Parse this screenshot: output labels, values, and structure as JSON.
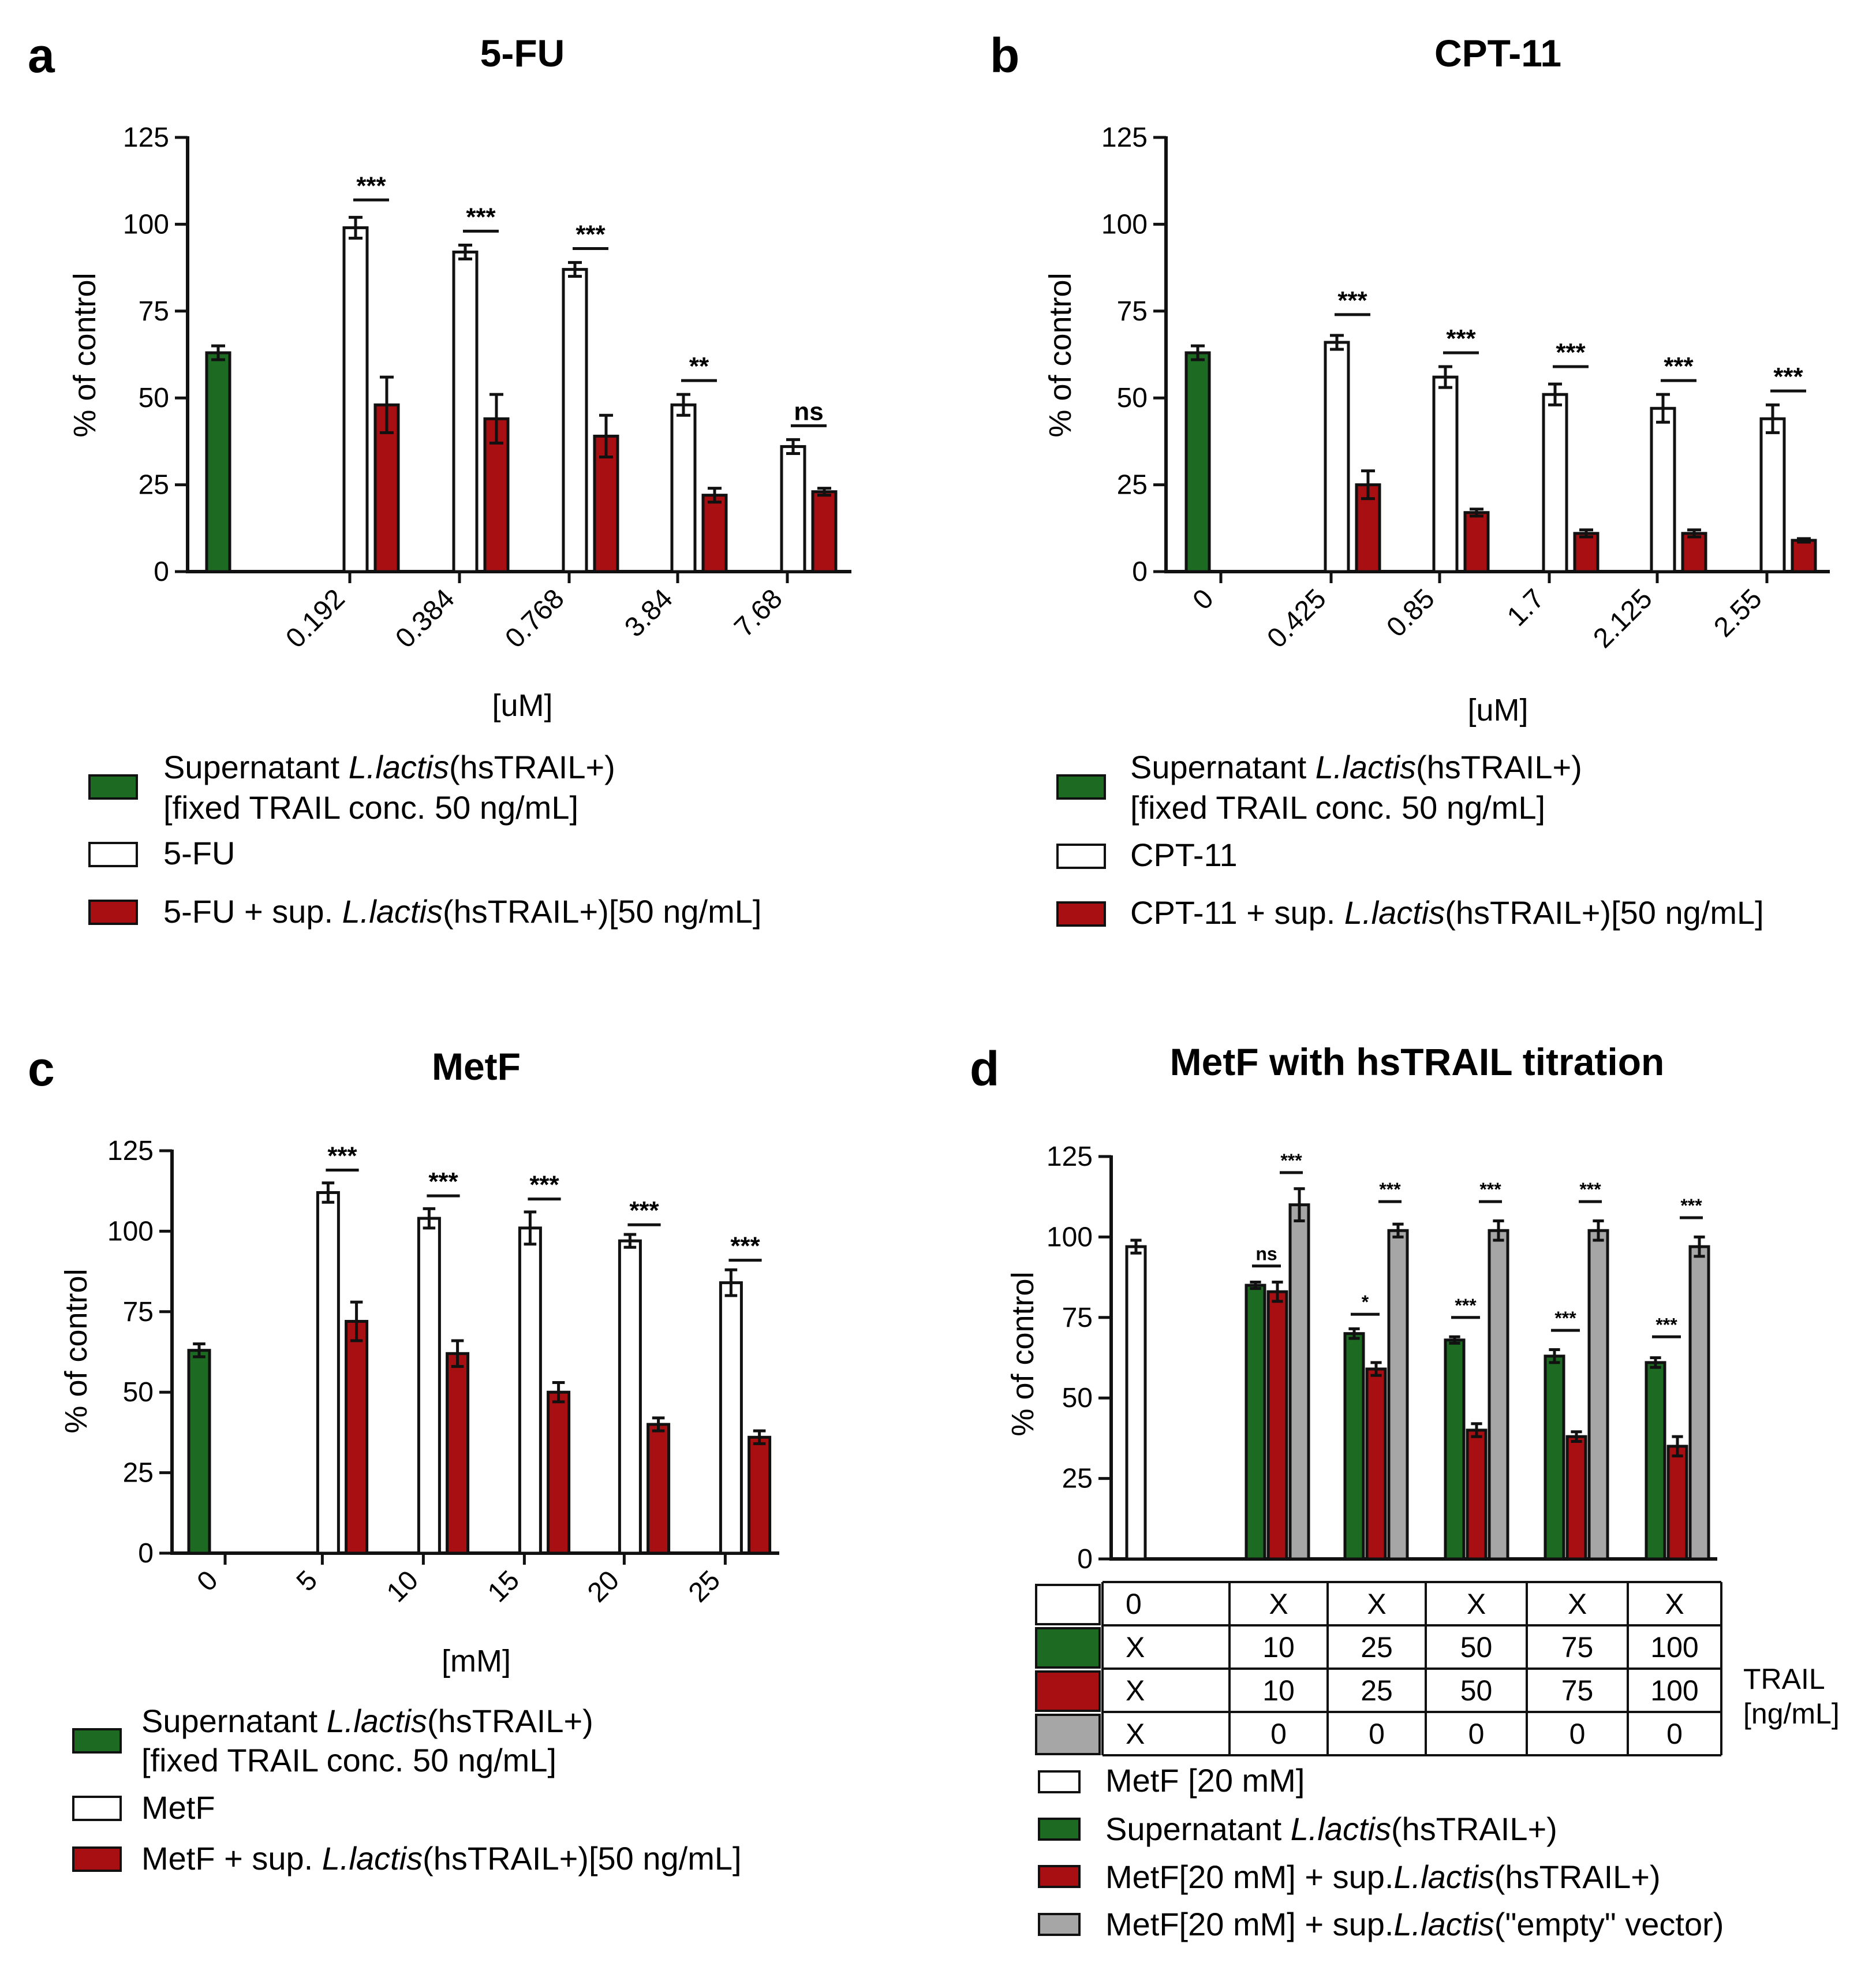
{
  "colors": {
    "green": "#1d6a22",
    "red": "#a80f12",
    "grey": "#a6a6a6",
    "white": "#ffffff",
    "axis": "#111111"
  },
  "axis_common": {
    "ylabel": "% of control",
    "yticks": [
      "0",
      "25",
      "50",
      "75",
      "100",
      "125"
    ],
    "ylim": [
      0,
      125
    ]
  },
  "panels": {
    "a": {
      "letter": "a",
      "title": "5-FU",
      "xunit": "[uM]"
    },
    "b": {
      "letter": "b",
      "title": "CPT-11",
      "xunit": "[uM]"
    },
    "c": {
      "letter": "c",
      "title": "MetF",
      "xunit": "[mM]"
    },
    "d": {
      "letter": "d",
      "title": "MetF with hsTRAIL titration"
    }
  },
  "legends": {
    "a": {
      "sup_line1_pre": "Supernatant ",
      "sup_italic": "L.lactis",
      "sup_line1_post": "(hsTRAIL+)",
      "sup_line2": "[fixed TRAIL conc. 50 ng/mL]",
      "drug": "5-FU",
      "combo_pre": "5-FU + sup. ",
      "combo_italic": "L.lactis",
      "combo_post": "(hsTRAIL+)[50 ng/mL]"
    },
    "b": {
      "sup_line1_pre": "Supernatant ",
      "sup_italic": "L.lactis",
      "sup_line1_post": "(hsTRAIL+)",
      "sup_line2": "[fixed TRAIL conc. 50 ng/mL]",
      "drug": "CPT-11",
      "combo_pre": "CPT-11 + sup. ",
      "combo_italic": "L.lactis",
      "combo_post": "(hsTRAIL+)[50 ng/mL]"
    },
    "c": {
      "sup_line1_pre": "Supernatant ",
      "sup_italic": "L.lactis",
      "sup_line1_post": "(hsTRAIL+)",
      "sup_line2": "[fixed TRAIL conc. 50 ng/mL]",
      "drug": "MetF",
      "combo_pre": "MetF + sup. ",
      "combo_italic": "L.lactis",
      "combo_post": "(hsTRAIL+)[50 ng/mL]"
    },
    "d": {
      "metf": "MetF [20 mM]",
      "sup_pre": "Supernatant ",
      "sup_italic": "L.lactis",
      "sup_post": "(hsTRAIL+)",
      "combo_pre": "MetF[20 mM] + sup.",
      "combo_italic": "L.lactis",
      "combo_post": "(hsTRAIL+)",
      "empty_pre": "MetF[20 mM] + sup.",
      "empty_italic": "L.lactis",
      "empty_post": "(\"empty\" vector)"
    }
  },
  "table_d": {
    "rows": [
      [
        "0",
        "X",
        "X",
        "X",
        "X",
        "X"
      ],
      [
        "X",
        "10",
        "25",
        "50",
        "75",
        "100"
      ],
      [
        "X",
        "10",
        "25",
        "50",
        "75",
        "100"
      ],
      [
        "X",
        "0",
        "0",
        "0",
        "0",
        "0"
      ]
    ],
    "trail_label_1": "TRAIL",
    "trail_label_2": "[ng/mL]"
  },
  "chart_data": [
    {
      "panel": "a",
      "type": "bar",
      "title": "5-FU",
      "xlabel": "[uM]",
      "ylabel": "% of control",
      "ylim": [
        0,
        125
      ],
      "control": {
        "name": "Supernatant L.lactis(hsTRAIL+) [fixed TRAIL conc. 50 ng/mL]",
        "value": 63,
        "err": 2
      },
      "categories": [
        "0.192",
        "0.384",
        "0.768",
        "3.84",
        "7.68"
      ],
      "series": [
        {
          "name": "5-FU",
          "values": [
            99,
            92,
            87,
            48,
            36
          ],
          "err": [
            3,
            2,
            2,
            3,
            2
          ]
        },
        {
          "name": "5-FU + sup. L.lactis(hsTRAIL+)[50 ng/mL]",
          "values": [
            48,
            44,
            39,
            22,
            23
          ],
          "err": [
            8,
            7,
            6,
            2,
            1
          ]
        }
      ],
      "significance": [
        "***",
        "***",
        "***",
        "**",
        "ns"
      ],
      "sig_y": [
        107,
        98,
        93,
        55,
        42
      ]
    },
    {
      "panel": "b",
      "type": "bar",
      "title": "CPT-11",
      "xlabel": "[uM]",
      "ylabel": "% of control",
      "ylim": [
        0,
        125
      ],
      "control": {
        "name": "Supernatant L.lactis(hsTRAIL+) [fixed TRAIL conc. 50 ng/mL]",
        "value": 63,
        "err": 2,
        "category": "0"
      },
      "categories": [
        "0.425",
        "0.85",
        "1.7",
        "2.125",
        "2.55"
      ],
      "series": [
        {
          "name": "CPT-11",
          "values": [
            66,
            56,
            51,
            47,
            44
          ],
          "err": [
            2,
            3,
            3,
            4,
            4
          ]
        },
        {
          "name": "CPT-11 + sup. L.lactis(hsTRAIL+)[50 ng/mL]",
          "values": [
            25,
            17,
            11,
            11,
            9
          ],
          "err": [
            4,
            1,
            1,
            1,
            0.5
          ]
        }
      ],
      "significance": [
        "***",
        "***",
        "***",
        "***",
        "***"
      ],
      "sig_y": [
        74,
        63,
        59,
        55,
        52
      ]
    },
    {
      "panel": "c",
      "type": "bar",
      "title": "MetF",
      "xlabel": "[mM]",
      "ylabel": "% of control",
      "ylim": [
        0,
        125
      ],
      "control": {
        "name": "Supernatant L.lactis(hsTRAIL+) [fixed TRAIL conc. 50 ng/mL]",
        "value": 63,
        "err": 2,
        "category": "0"
      },
      "categories": [
        "5",
        "10",
        "15",
        "20",
        "25"
      ],
      "series": [
        {
          "name": "MetF",
          "values": [
            112,
            104,
            101,
            97,
            84
          ],
          "err": [
            3,
            3,
            5,
            2,
            4
          ]
        },
        {
          "name": "MetF + sup. L.lactis(hsTRAIL+)[50 ng/mL]",
          "values": [
            72,
            62,
            50,
            40,
            36
          ],
          "err": [
            6,
            4,
            3,
            2,
            2
          ]
        }
      ],
      "significance": [
        "***",
        "***",
        "***",
        "***",
        "***"
      ],
      "sig_y": [
        119,
        111,
        110,
        102,
        91
      ]
    },
    {
      "panel": "d",
      "type": "bar",
      "title": "MetF with hsTRAIL titration",
      "ylabel": "% of control",
      "ylim": [
        0,
        125
      ],
      "control": {
        "name": "MetF [20 mM]",
        "value": 97,
        "err": 2
      },
      "categories": [
        "10",
        "25",
        "50",
        "75",
        "100"
      ],
      "series": [
        {
          "name": "Supernatant L.lactis(hsTRAIL+)",
          "values": [
            85,
            70,
            68,
            63,
            61
          ],
          "err": [
            1,
            1.5,
            1,
            2,
            1.5
          ]
        },
        {
          "name": "MetF[20 mM] + sup.L.lactis(hsTRAIL+)",
          "values": [
            83,
            59,
            40,
            38,
            35
          ],
          "err": [
            3,
            2,
            2,
            1.5,
            3
          ]
        },
        {
          "name": "MetF[20 mM] + sup.L.lactis(\"empty\" vector)",
          "values": [
            110,
            102,
            102,
            102,
            97
          ],
          "err": [
            5,
            2,
            3,
            3,
            3
          ]
        }
      ],
      "significance_green_red": [
        "ns",
        "*",
        "***",
        "***",
        "***"
      ],
      "sig_gr_y": [
        91,
        76,
        75,
        71,
        69
      ],
      "significance_red_grey": [
        "***",
        "***",
        "***",
        "***",
        "***"
      ],
      "sig_rg_y": [
        120,
        111,
        111,
        111,
        106
      ],
      "trail_ng_per_ml": {
        "green": [
          10,
          25,
          50,
          75,
          100
        ],
        "red": [
          10,
          25,
          50,
          75,
          100
        ],
        "grey": [
          0,
          0,
          0,
          0,
          0
        ]
      }
    }
  ]
}
